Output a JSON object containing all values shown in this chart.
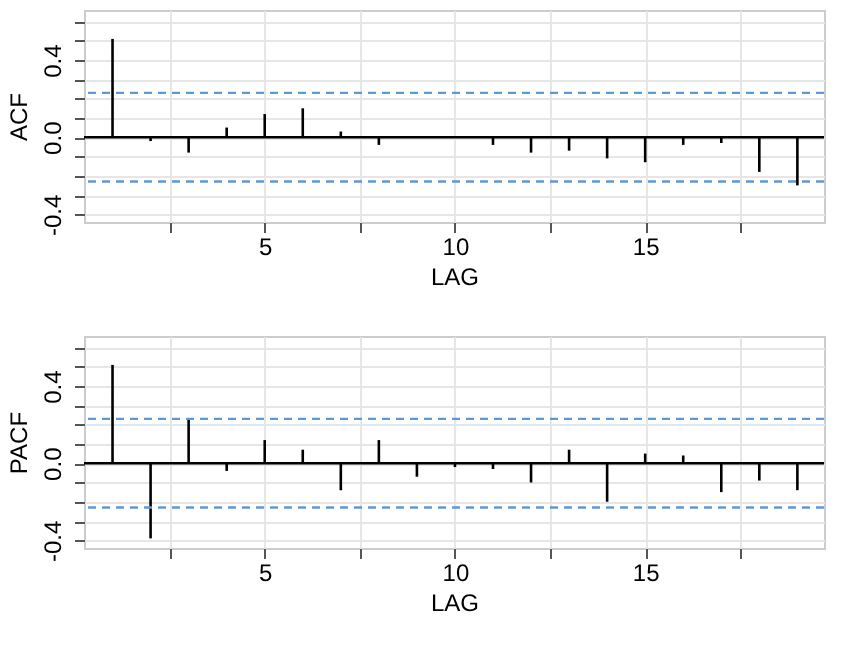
{
  "chart_data": [
    {
      "type": "bar",
      "xlabel": "LAG",
      "ylabel": "ACF",
      "x": [
        1,
        2,
        3,
        4,
        5,
        6,
        7,
        8,
        9,
        10,
        11,
        12,
        13,
        14,
        15,
        16,
        17,
        18,
        19
      ],
      "series": [
        {
          "color": "#000000",
          "values": [
            0.51,
            -0.02,
            -0.08,
            0.05,
            0.12,
            0.15,
            0.03,
            -0.04,
            0.0,
            0.0,
            -0.04,
            -0.08,
            -0.07,
            -0.11,
            -0.13,
            -0.04,
            -0.03,
            -0.18,
            -0.25
          ]
        }
      ],
      "xlim": [
        0.25,
        19.7
      ],
      "ylim": [
        -0.44,
        0.66
      ],
      "xticks": [
        {
          "value": 2.5,
          "label": null
        },
        5,
        {
          "value": 7.5,
          "label": null
        },
        10,
        {
          "value": 12.5,
          "label": null
        },
        15,
        {
          "value": 17.5,
          "label": null
        }
      ],
      "yticks": [
        {
          "value": -0.4,
          "label": "-0.4"
        },
        {
          "value": -0.3,
          "label": null
        },
        {
          "value": -0.2,
          "label": null
        },
        {
          "value": -0.1,
          "label": null
        },
        {
          "value": 0,
          "label": "0.0"
        },
        {
          "value": 0.1,
          "label": null
        },
        {
          "value": 0.2,
          "label": null
        },
        {
          "value": 0.3,
          "label": null
        },
        {
          "value": 0.4,
          "label": "0.4"
        },
        {
          "value": 0.5,
          "label": null
        },
        {
          "value": 0.6,
          "label": null
        }
      ],
      "grid": true,
      "ref_lines": [
        {
          "axis": "y",
          "value": 0.23,
          "color": "#5b9bd5",
          "line_style": "dashed"
        },
        {
          "axis": "y",
          "value": -0.23,
          "color": "#5b9bd5",
          "line_style": "dashed"
        },
        {
          "axis": "y",
          "value": 0,
          "color": "#000000",
          "line_style": "solid"
        }
      ]
    },
    {
      "type": "bar",
      "xlabel": "LAG",
      "ylabel": "PACF",
      "x": [
        1,
        2,
        3,
        4,
        5,
        6,
        7,
        8,
        9,
        10,
        11,
        12,
        13,
        14,
        15,
        16,
        17,
        18,
        19
      ],
      "series": [
        {
          "color": "#000000",
          "values": [
            0.51,
            -0.39,
            0.23,
            -0.04,
            0.12,
            0.07,
            -0.14,
            0.12,
            -0.07,
            -0.02,
            -0.03,
            -0.1,
            0.07,
            -0.2,
            0.05,
            0.04,
            -0.15,
            -0.09,
            -0.14
          ]
        }
      ],
      "xlim": [
        0.25,
        19.7
      ],
      "ylim": [
        -0.44,
        0.66
      ],
      "xticks": [
        {
          "value": 2.5,
          "label": null
        },
        5,
        {
          "value": 7.5,
          "label": null
        },
        10,
        {
          "value": 12.5,
          "label": null
        },
        15,
        {
          "value": 17.5,
          "label": null
        }
      ],
      "yticks": [
        {
          "value": -0.4,
          "label": "-0.4"
        },
        {
          "value": -0.3,
          "label": null
        },
        {
          "value": -0.2,
          "label": null
        },
        {
          "value": -0.1,
          "label": null
        },
        {
          "value": 0,
          "label": "0.0"
        },
        {
          "value": 0.1,
          "label": null
        },
        {
          "value": 0.2,
          "label": null
        },
        {
          "value": 0.3,
          "label": null
        },
        {
          "value": 0.4,
          "label": "0.4"
        },
        {
          "value": 0.5,
          "label": null
        },
        {
          "value": 0.6,
          "label": null
        }
      ],
      "grid": true,
      "ref_lines": [
        {
          "axis": "y",
          "value": 0.23,
          "color": "#5b9bd5",
          "line_style": "dashed"
        },
        {
          "axis": "y",
          "value": -0.23,
          "color": "#5b9bd5",
          "line_style": "dashed"
        },
        {
          "axis": "y",
          "value": 0,
          "color": "#000000",
          "line_style": "solid"
        }
      ]
    }
  ]
}
